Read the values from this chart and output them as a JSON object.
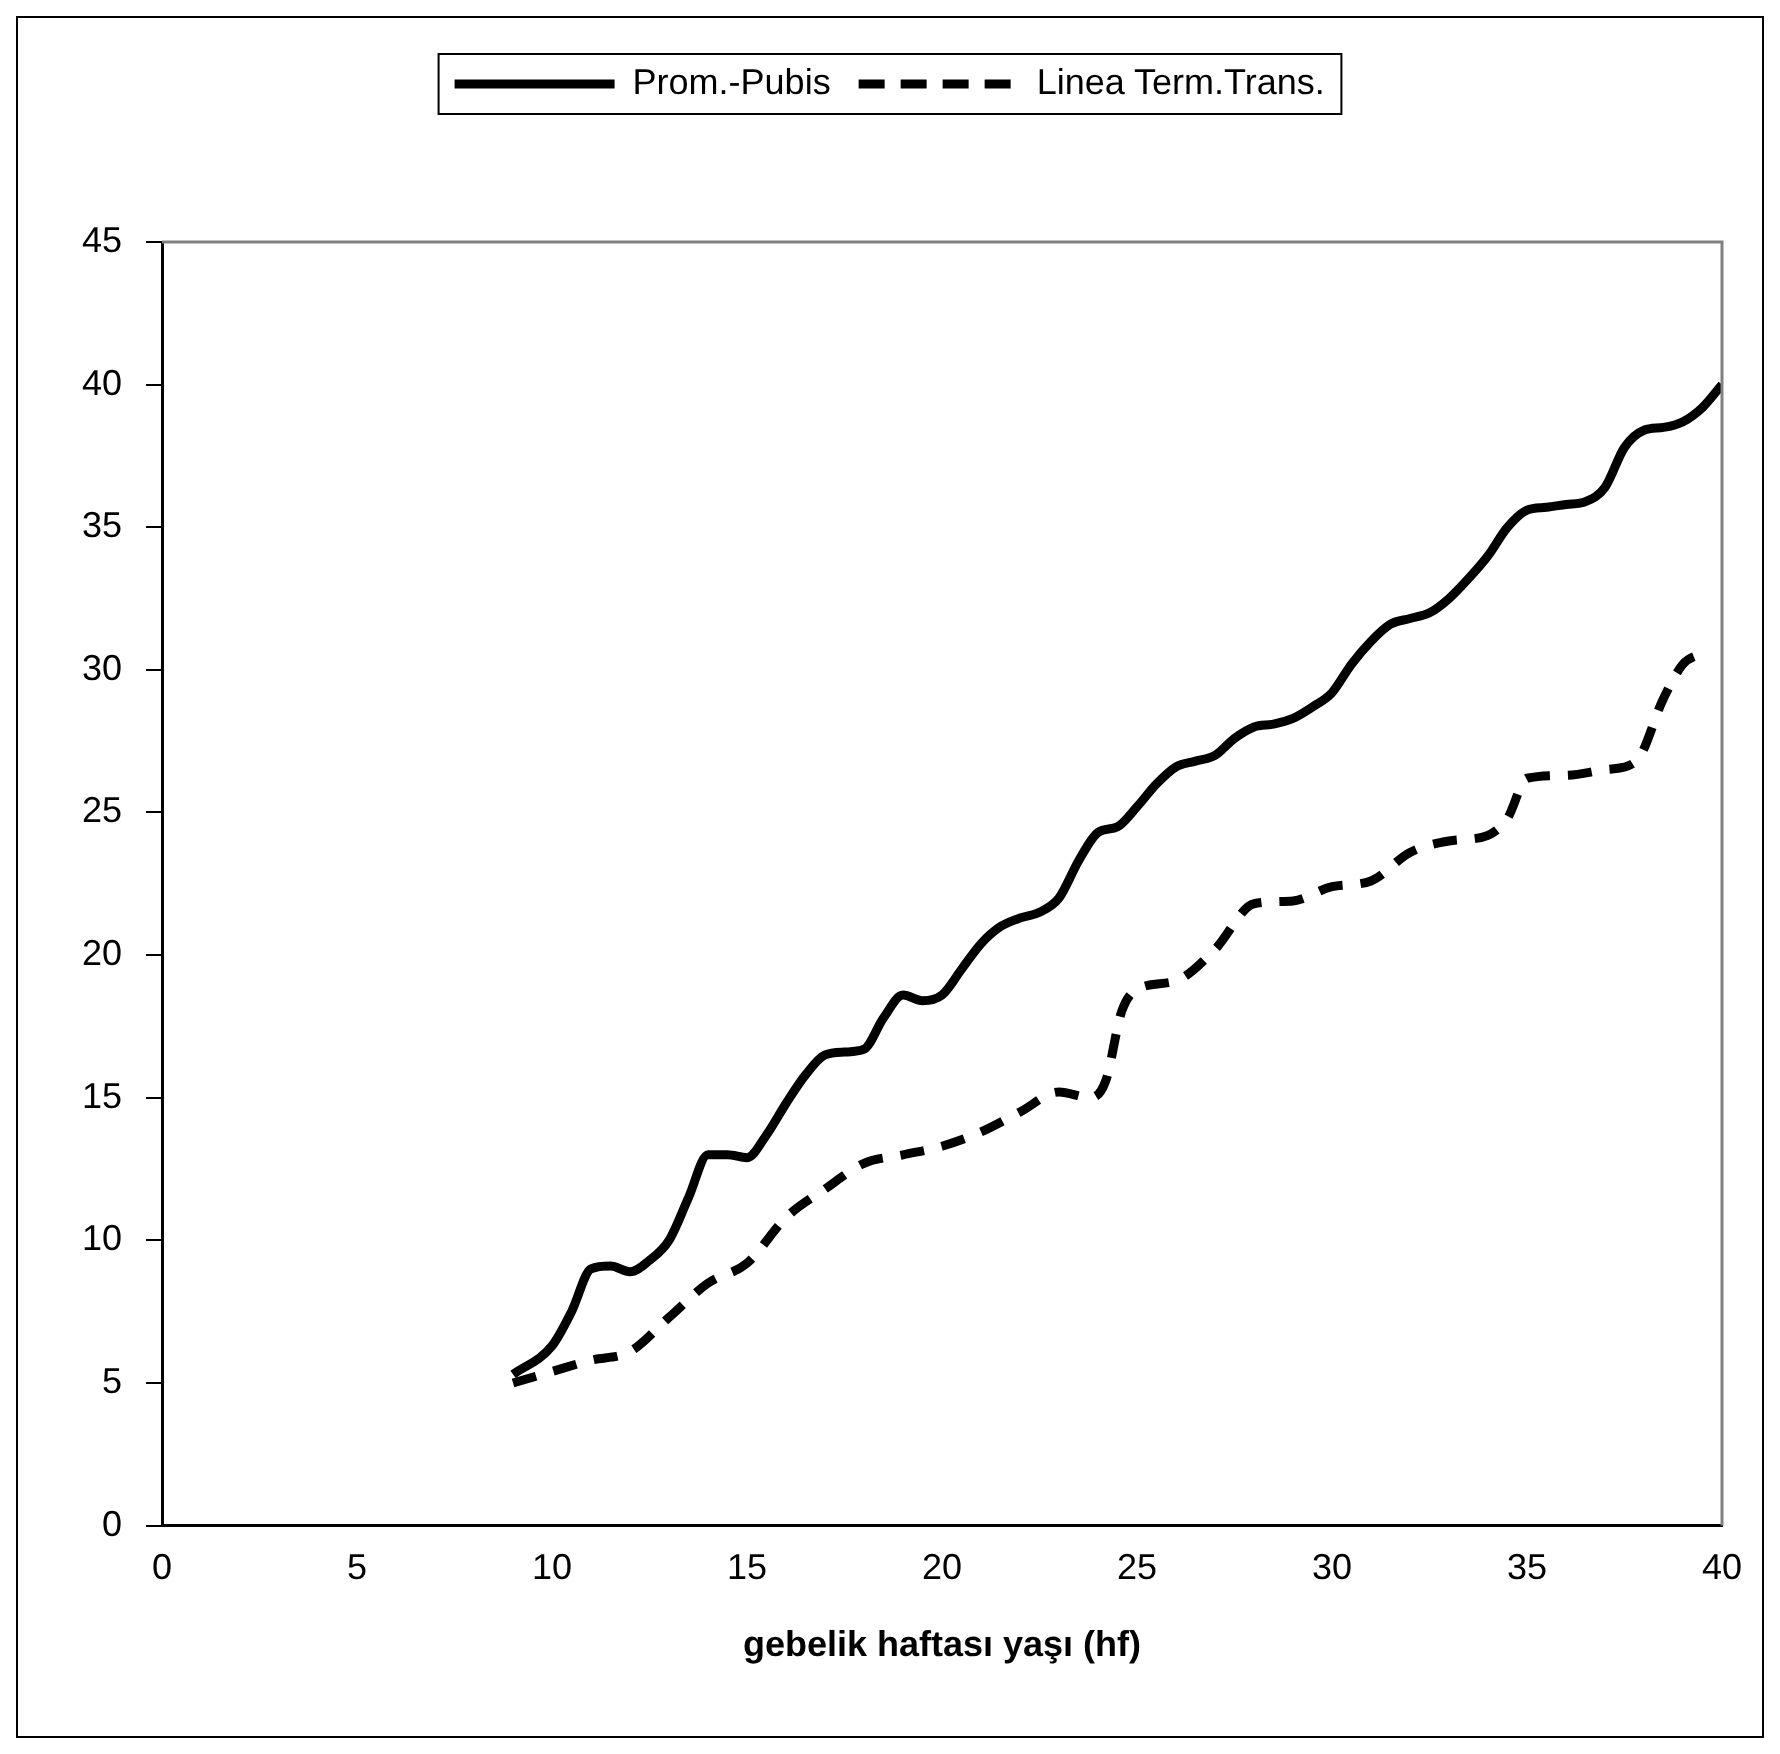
{
  "chart_data": {
    "type": "line",
    "xlabel": "gebelik haftası yaşı (hf)",
    "xlim": [
      0,
      40
    ],
    "xticks": [
      0,
      5,
      10,
      15,
      20,
      25,
      30,
      35,
      40
    ],
    "ylim": [
      0,
      45
    ],
    "yticks": [
      0,
      5,
      10,
      15,
      20,
      25,
      30,
      35,
      40,
      45
    ],
    "grid": false,
    "legend": "top",
    "marker": "none",
    "series": [
      {
        "name": "Prom.-Pubis",
        "color": "#000000",
        "line_style": "solid",
        "x": [
          9,
          10,
          10.5,
          11,
          11.5,
          12,
          12.5,
          13,
          13.5,
          14,
          14.5,
          15,
          15.5,
          16,
          16.5,
          17,
          17.5,
          18,
          18.5,
          19,
          19.5,
          20,
          20.5,
          21,
          21.5,
          22,
          22.5,
          23,
          23.5,
          24,
          24.5,
          25,
          25.5,
          26,
          26.5,
          27,
          27.5,
          28,
          28.5,
          29,
          29.5,
          30,
          30.5,
          31,
          31.5,
          32,
          32.5,
          33,
          33.5,
          34,
          34.5,
          35,
          35.5,
          36,
          36.5,
          37,
          37.5,
          38,
          38.5,
          39,
          39.5,
          40
        ],
        "values": [
          5.3,
          6.3,
          7.5,
          9,
          9.1,
          8.9,
          9.3,
          10,
          11.5,
          13,
          13,
          12.9,
          13.7,
          14.8,
          15.8,
          16.5,
          16.6,
          16.7,
          17.8,
          18.6,
          18.4,
          18.6,
          19.5,
          20.4,
          21,
          21.3,
          21.5,
          22,
          23.3,
          24.3,
          24.5,
          25.2,
          26,
          26.6,
          26.8,
          27,
          27.6,
          28,
          28.1,
          28.3,
          28.7,
          29.2,
          30.2,
          31,
          31.6,
          31.8,
          32,
          32.5,
          33.2,
          34,
          35,
          35.6,
          35.7,
          35.8,
          35.9,
          36.4,
          37.8,
          38.4,
          38.5,
          38.7,
          39.2,
          40
        ]
      },
      {
        "name": "Linea Term.Trans.",
        "color": "#000000",
        "line_style": "dashed",
        "x": [
          9,
          10,
          11,
          12,
          13,
          14,
          15,
          16,
          17,
          18,
          19,
          20,
          21,
          22,
          23,
          23.8,
          24.2,
          24.6,
          25,
          26,
          27,
          28,
          29,
          30,
          31,
          32,
          33,
          34,
          34.5,
          35,
          36,
          37,
          37.8,
          38.5,
          39,
          39.5
        ],
        "values": [
          5,
          5.4,
          5.8,
          6.1,
          7.3,
          8.5,
          9.2,
          10.8,
          11.8,
          12.7,
          13,
          13.3,
          13.8,
          14.5,
          15.2,
          15,
          15.6,
          18,
          18.8,
          19.1,
          20.2,
          21.8,
          21.9,
          22.4,
          22.6,
          23.6,
          24,
          24.2,
          24.8,
          26.2,
          26.3,
          26.5,
          26.8,
          29,
          30.2,
          30.6
        ]
      }
    ]
  }
}
